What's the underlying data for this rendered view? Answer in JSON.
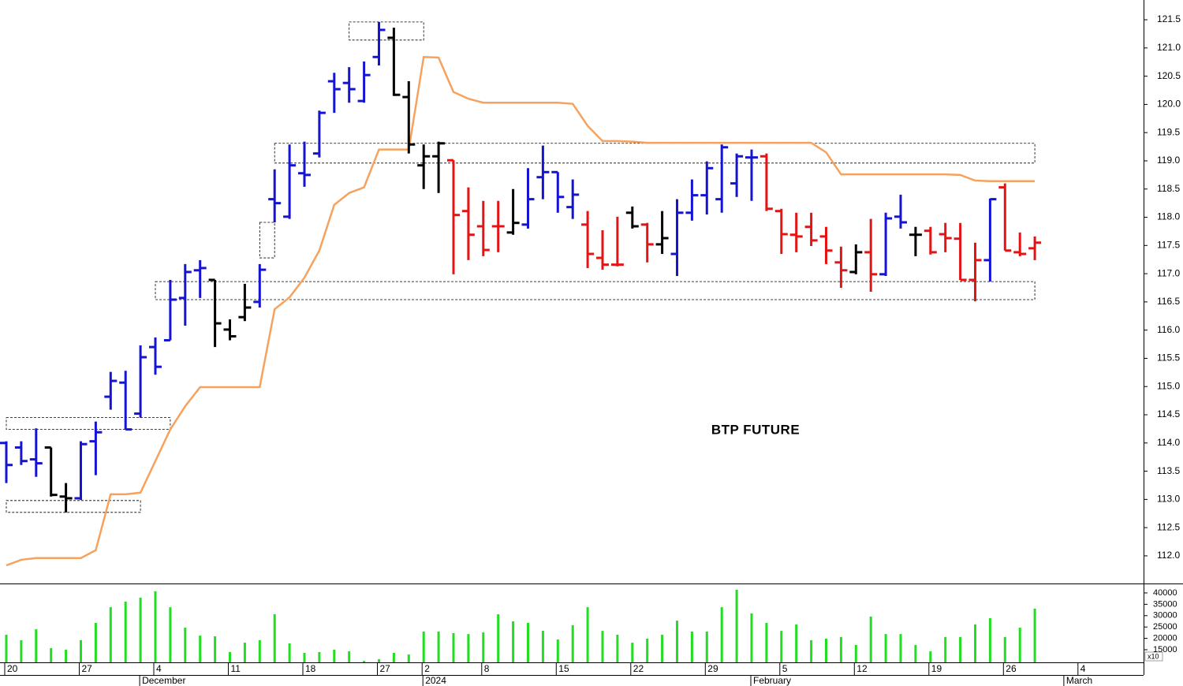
{
  "chart_data": {
    "type": "ohlc",
    "title": "BTP FUTURE",
    "categories": [
      "20",
      null,
      null,
      null,
      null,
      "27",
      null,
      null,
      null,
      null,
      "4",
      null,
      null,
      null,
      null,
      "11",
      null,
      null,
      null,
      null,
      "18",
      null,
      null,
      null,
      null,
      "27",
      null,
      null,
      "2",
      null,
      null,
      null,
      "8",
      null,
      null,
      null,
      null,
      "15",
      null,
      null,
      null,
      null,
      "22",
      null,
      null,
      null,
      null,
      "29",
      null,
      null,
      null,
      null,
      "5",
      null,
      null,
      null,
      null,
      "12",
      null,
      null,
      null,
      null,
      "19",
      null,
      null,
      null,
      null,
      "26",
      null,
      null,
      null,
      null,
      "4"
    ],
    "months": [
      null,
      null,
      null,
      null,
      null,
      null,
      null,
      null,
      null,
      "December",
      null,
      null,
      null,
      null,
      null,
      null,
      null,
      null,
      null,
      null,
      null,
      null,
      null,
      null,
      null,
      null,
      null,
      null,
      "2024",
      null,
      null,
      null,
      null,
      null,
      null,
      null,
      null,
      null,
      null,
      null,
      null,
      null,
      null,
      null,
      null,
      null,
      null,
      null,
      null,
      null,
      "February",
      null,
      null,
      null,
      null,
      null,
      null,
      null,
      null,
      null,
      null,
      null,
      null,
      null,
      null,
      null,
      null,
      null,
      null,
      null,
      null,
      "March",
      null
    ],
    "open": [
      114.0,
      113.92,
      113.71,
      113.92,
      113.05,
      113.02,
      114.03,
      114.82,
      115.07,
      114.52,
      115.7,
      115.82,
      116.57,
      117.06,
      116.89,
      116.01,
      116.23,
      116.5,
      118.32,
      118.01,
      118.78,
      119.13,
      120.41,
      120.38,
      120.06,
      120.84,
      121.18,
      120.13,
      118.92,
      119.08,
      119.01,
      118.11,
      117.84,
      117.84,
      117.73,
      117.87,
      118.71,
      118.8,
      118.18,
      117.87,
      117.28,
      117.16,
      118.08,
      117.87,
      117.52,
      117.35,
      118.08,
      118.39,
      118.32,
      118.6,
      119.06,
      119.08,
      118.11,
      117.69,
      117.83,
      117.66,
      117.2,
      117.03,
      117.38,
      116.99,
      118.01,
      117.69,
      117.76,
      117.7,
      117.62,
      116.89,
      117.24,
      118.53,
      117.38,
      117.45,
      null,
      null,
      null
    ],
    "high": [
      114.03,
      114.03,
      114.26,
      113.92,
      113.29,
      114.03,
      114.38,
      115.26,
      115.28,
      115.73,
      115.87,
      116.89,
      117.17,
      117.24,
      116.89,
      116.19,
      116.82,
      117.17,
      118.85,
      119.29,
      119.34,
      119.89,
      120.56,
      120.66,
      120.76,
      121.46,
      121.36,
      120.41,
      119.29,
      119.34,
      119.01,
      118.53,
      118.29,
      118.29,
      118.5,
      118.87,
      119.27,
      118.8,
      118.67,
      118.11,
      117.77,
      118.01,
      118.19,
      117.9,
      118.11,
      118.32,
      118.67,
      118.99,
      119.29,
      119.13,
      119.2,
      119.13,
      118.15,
      118.08,
      118.08,
      117.83,
      117.48,
      117.52,
      117.97,
      118.08,
      118.4,
      117.83,
      117.83,
      117.9,
      117.9,
      117.55,
      118.33,
      118.6,
      117.73,
      117.66,
      null,
      null,
      null
    ],
    "low": [
      113.29,
      113.61,
      113.4,
      113.05,
      112.77,
      112.99,
      113.43,
      114.59,
      114.24,
      114.45,
      115.21,
      115.82,
      116.08,
      116.57,
      115.7,
      115.82,
      116.16,
      116.4,
      117.91,
      117.97,
      118.54,
      119.06,
      119.85,
      120.03,
      120.03,
      120.69,
      120.15,
      119.13,
      118.5,
      118.43,
      116.99,
      117.24,
      117.31,
      117.38,
      117.69,
      117.8,
      118.32,
      118.08,
      117.97,
      117.1,
      117.07,
      117.13,
      117.8,
      117.2,
      117.35,
      116.96,
      117.94,
      118.05,
      118.08,
      118.36,
      118.29,
      118.11,
      117.35,
      117.38,
      117.49,
      117.17,
      116.75,
      116.99,
      116.68,
      116.96,
      117.8,
      117.31,
      117.34,
      117.38,
      116.89,
      116.51,
      116.86,
      117.41,
      117.31,
      117.24,
      null,
      null,
      null
    ],
    "close": [
      113.61,
      113.68,
      113.64,
      113.08,
      113.02,
      113.98,
      114.19,
      115.1,
      114.24,
      115.52,
      115.35,
      116.54,
      117.03,
      117.1,
      116.12,
      115.89,
      116.4,
      117.07,
      118.25,
      118.92,
      118.75,
      119.85,
      120.27,
      120.27,
      120.52,
      121.32,
      120.17,
      119.29,
      119.08,
      119.31,
      118.04,
      117.69,
      117.42,
      117.84,
      117.9,
      118.32,
      118.8,
      118.36,
      118.4,
      117.35,
      117.16,
      117.16,
      117.84,
      117.52,
      117.63,
      118.08,
      118.39,
      118.87,
      119.24,
      119.08,
      119.06,
      118.15,
      117.7,
      117.66,
      117.59,
      117.41,
      117.06,
      117.38,
      116.99,
      117.98,
      117.91,
      117.69,
      117.38,
      117.63,
      116.89,
      117.24,
      118.32,
      117.41,
      117.35,
      117.55,
      null,
      null,
      null
    ],
    "bar_colors": [
      "#1414d2",
      "#1414d2",
      "#1414d2",
      "#000000",
      "#000000",
      "#1414d2",
      "#1414d2",
      "#1414d2",
      "#1414d2",
      "#1414d2",
      "#1414d2",
      "#1414d2",
      "#1414d2",
      "#1414d2",
      "#000000",
      "#000000",
      "#000000",
      "#1414d2",
      "#1414d2",
      "#1414d2",
      "#1414d2",
      "#1414d2",
      "#1414d2",
      "#1414d2",
      "#1414d2",
      "#1414d2",
      "#000000",
      "#000000",
      "#000000",
      "#000000",
      "#e41414",
      "#e41414",
      "#e41414",
      "#e41414",
      "#000000",
      "#1414d2",
      "#1414d2",
      "#1414d2",
      "#1414d2",
      "#e41414",
      "#e41414",
      "#e41414",
      "#000000",
      "#e41414",
      "#000000",
      "#1414d2",
      "#1414d2",
      "#1414d2",
      "#1414d2",
      "#1414d2",
      "#1414d2",
      "#e41414",
      "#e41414",
      "#e41414",
      "#e41414",
      "#e41414",
      "#e41414",
      "#000000",
      "#e41414",
      "#1414d2",
      "#1414d2",
      "#000000",
      "#e41414",
      "#e41414",
      "#e41414",
      "#e41414",
      "#1414d2",
      "#e41414",
      "#e41414",
      "#e41414",
      null,
      null,
      null
    ],
    "ylim": [
      111.51,
      121.85
    ],
    "yticks": [
      {
        "value": 112.0,
        "label": "112.0"
      },
      {
        "value": 112.5,
        "label": "112.5"
      },
      {
        "value": 113.0,
        "label": "113.0"
      },
      {
        "value": 113.5,
        "label": "113.5"
      },
      {
        "value": 114.0,
        "label": "114.0"
      },
      {
        "value": 114.5,
        "label": "114.5"
      },
      {
        "value": 115.0,
        "label": "115.0"
      },
      {
        "value": 115.5,
        "label": "115.5"
      },
      {
        "value": 116.0,
        "label": "116.0"
      },
      {
        "value": 116.5,
        "label": "116.5"
      },
      {
        "value": 117.0,
        "label": "117.0"
      },
      {
        "value": 117.5,
        "label": "117.5"
      },
      {
        "value": 118.0,
        "label": "118.0"
      },
      {
        "value": 118.5,
        "label": "118.5"
      },
      {
        "value": 119.0,
        "label": "119.0"
      },
      {
        "value": 119.5,
        "label": "119.5"
      },
      {
        "value": 120.0,
        "label": "120.0"
      },
      {
        "value": 120.5,
        "label": "120.5"
      },
      {
        "value": 121.0,
        "label": "121.0"
      },
      {
        "value": 121.5,
        "label": "121.5"
      }
    ],
    "line": {
      "color": "#f6a25e",
      "values": [
        111.83,
        111.93,
        111.96,
        111.96,
        111.96,
        111.96,
        112.1,
        113.09,
        113.09,
        113.12,
        113.68,
        114.24,
        114.65,
        114.99,
        114.99,
        114.99,
        114.99,
        114.99,
        116.37,
        116.58,
        116.93,
        117.41,
        118.22,
        118.43,
        118.53,
        119.2,
        119.2,
        119.2,
        120.84,
        120.83,
        120.22,
        120.1,
        120.03,
        120.03,
        120.03,
        120.03,
        120.03,
        120.03,
        120.01,
        119.62,
        119.35,
        119.35,
        119.34,
        119.32,
        119.32,
        119.32,
        119.32,
        119.32,
        119.32,
        119.32,
        119.32,
        119.32,
        119.32,
        119.32,
        119.32,
        119.15,
        118.76,
        118.76,
        118.76,
        118.76,
        118.76,
        118.76,
        118.76,
        118.76,
        118.75,
        118.65,
        118.64,
        118.64,
        118.64,
        118.64,
        null,
        null,
        null
      ]
    },
    "zones": [
      {
        "start": 23,
        "end": 28,
        "low": 121.14,
        "high": 121.46
      },
      {
        "start": 18,
        "end": 69,
        "low": 118.96,
        "high": 119.31
      },
      {
        "start": 17,
        "end": 18,
        "low": 117.28,
        "high": 117.91
      },
      {
        "start": 10,
        "end": 69,
        "low": 116.54,
        "high": 116.86
      },
      {
        "start": 0,
        "end": 11,
        "low": 114.24,
        "high": 114.45
      },
      {
        "start": 0,
        "end": 9,
        "low": 112.77,
        "high": 112.98
      }
    ],
    "volume": {
      "type": "bar",
      "color": "#22dd22",
      "values": [
        21600,
        19200,
        24000,
        15700,
        15000,
        19200,
        26800,
        33700,
        36200,
        37900,
        40700,
        33700,
        24700,
        21200,
        20900,
        14000,
        18100,
        19200,
        30600,
        17800,
        13600,
        14000,
        15000,
        14300,
        10100,
        10800,
        13600,
        12900,
        23000,
        23000,
        22300,
        21900,
        22600,
        30600,
        27500,
        26800,
        23300,
        19500,
        25800,
        33700,
        23300,
        21600,
        18100,
        19900,
        21600,
        27800,
        23000,
        23000,
        33700,
        41400,
        31000,
        26800,
        23300,
        26100,
        19200,
        19900,
        20600,
        17100,
        29600,
        21900,
        21900,
        17100,
        14300,
        20600,
        20600,
        26100,
        28900,
        20600,
        24700,
        33100,
        null,
        null,
        null
      ],
      "ylim": [
        9450,
        43800
      ],
      "yticks": [
        40000,
        35000,
        30000,
        25000,
        20000,
        15000
      ],
      "unit": "x10"
    }
  }
}
